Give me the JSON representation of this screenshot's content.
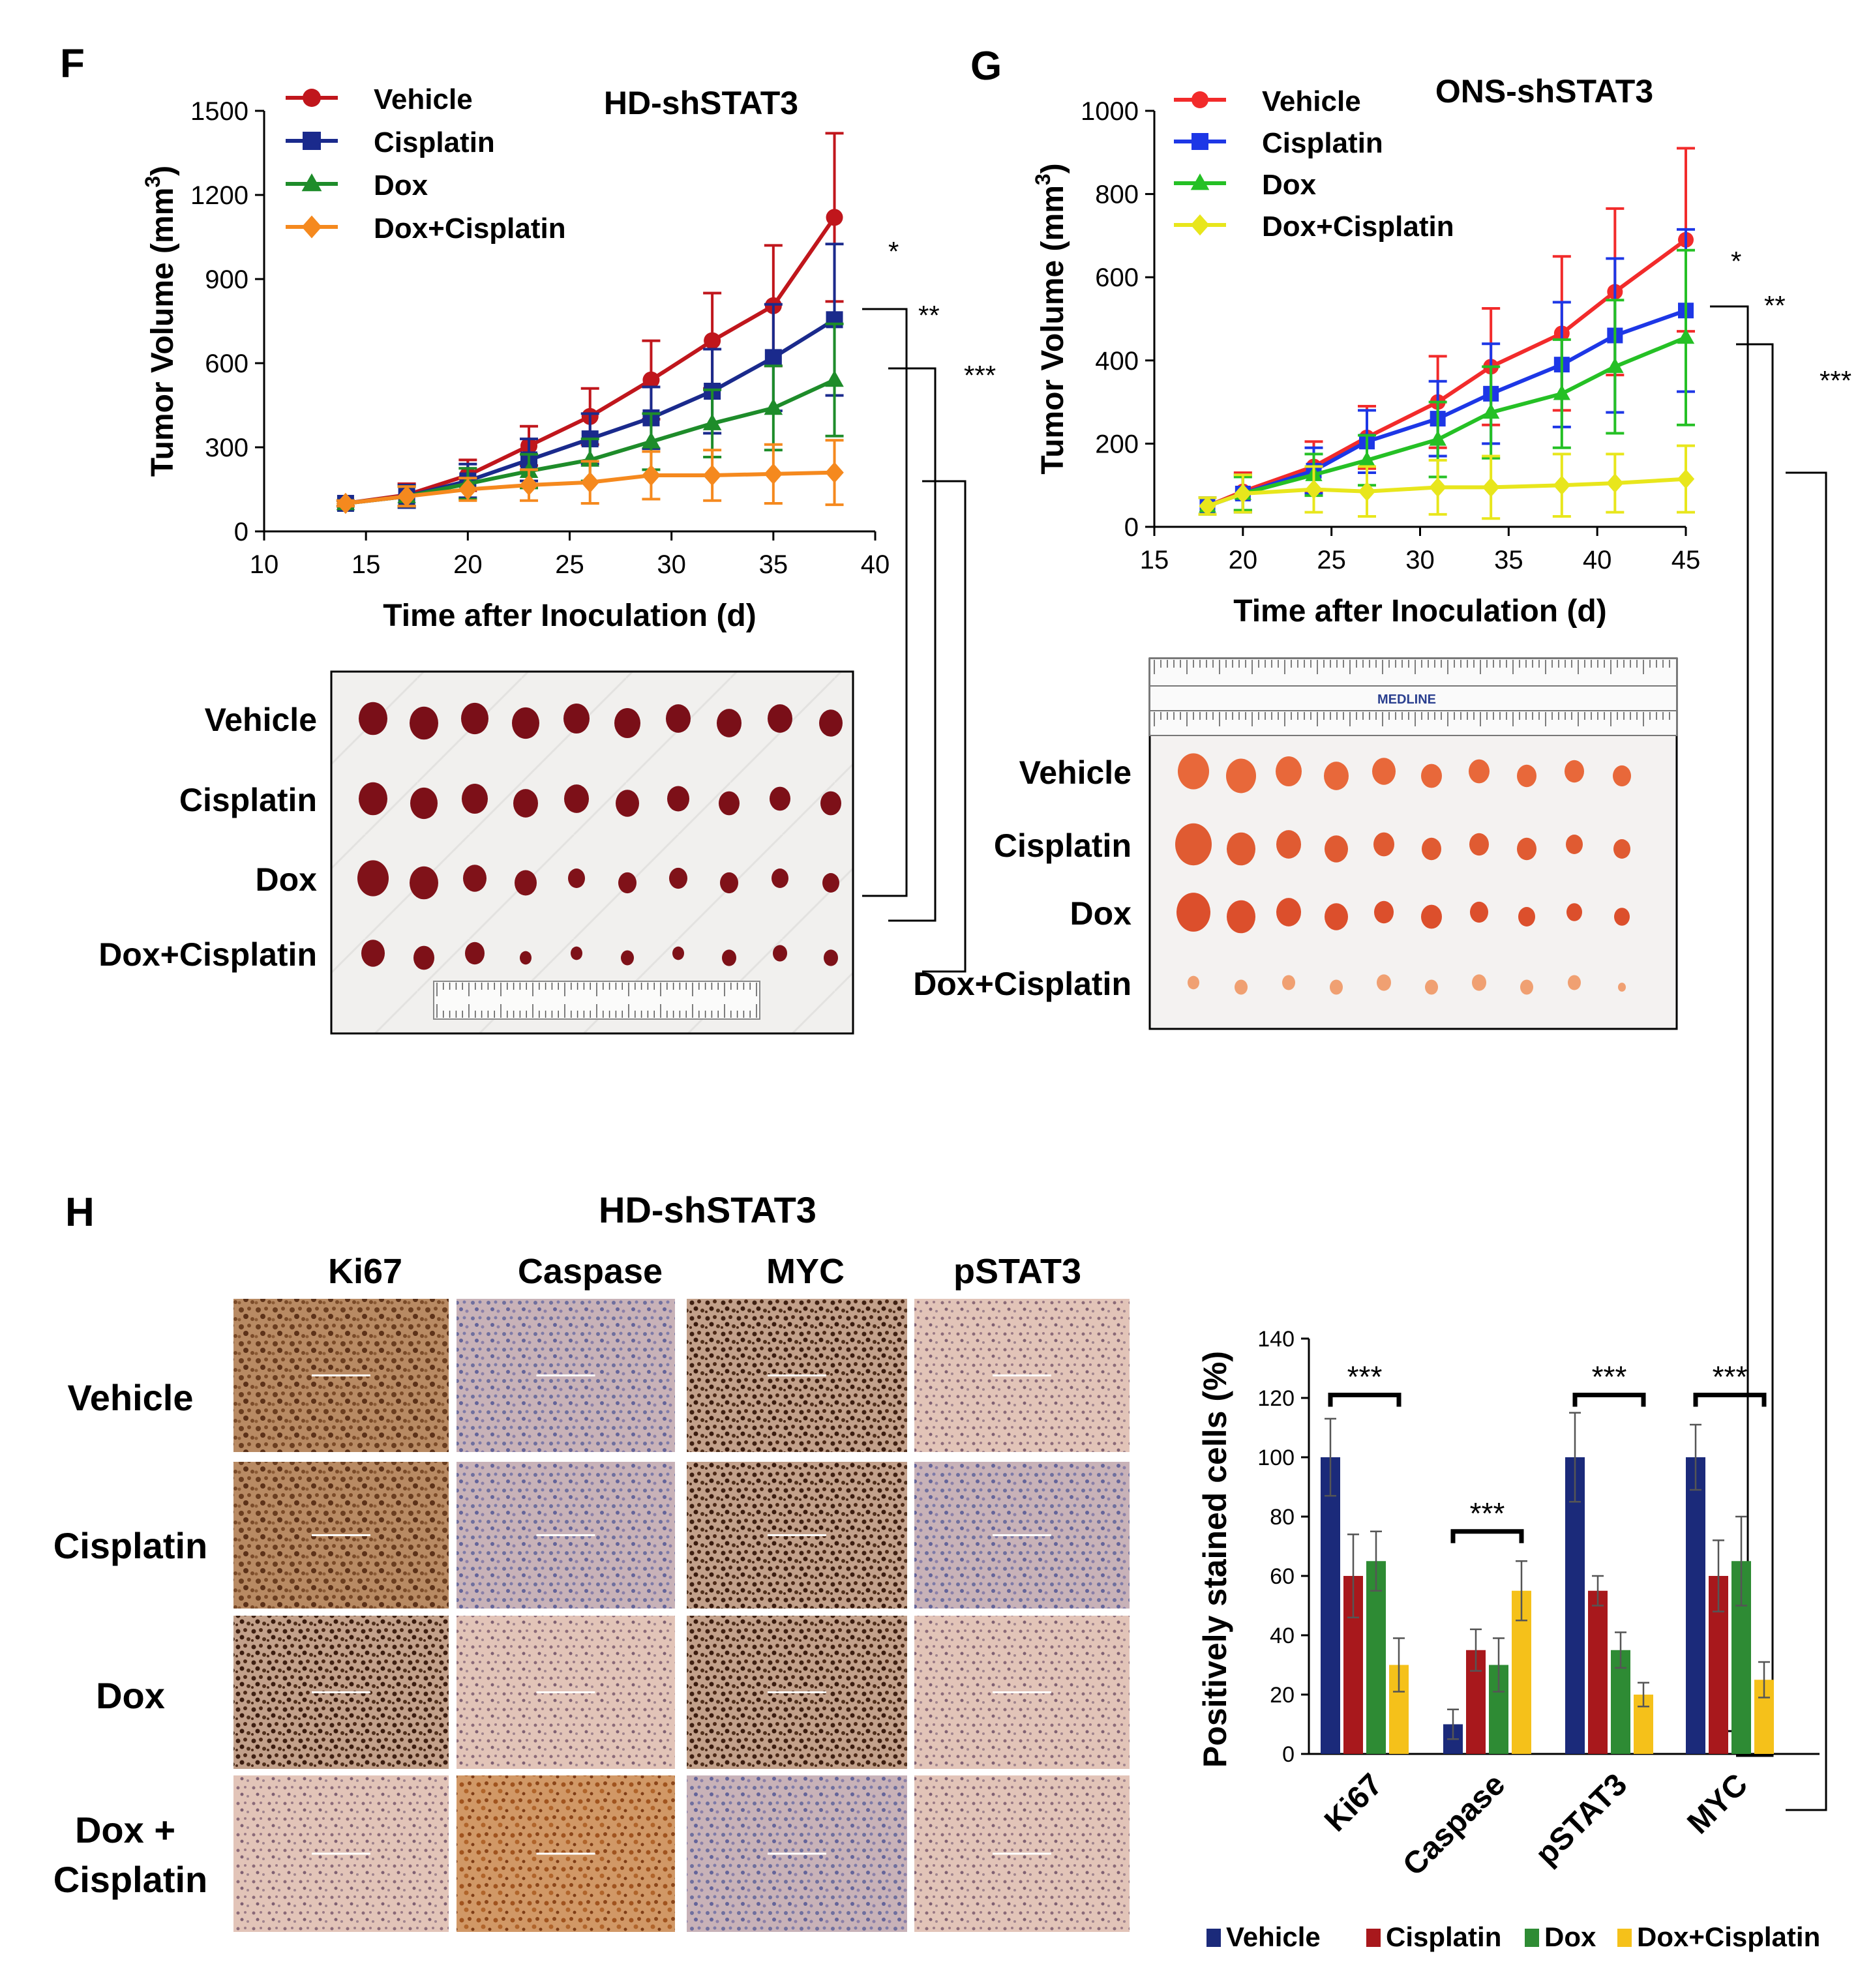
{
  "panels": {
    "F": {
      "letter": "F"
    },
    "G": {
      "letter": "G"
    },
    "H": {
      "letter": "H",
      "title": "HD-shSTAT3",
      "columns": [
        "Ki67",
        "Caspase",
        "MYC",
        "pSTAT3"
      ],
      "rows": [
        "Vehicle",
        "Cisplatin",
        "Dox",
        "Dox +",
        "Cisplatin"
      ]
    }
  },
  "photos": {
    "F": {
      "labels": [
        "Vehicle",
        "Cisplatin",
        "Dox",
        "Dox+Cisplatin"
      ],
      "counts": [
        10,
        10,
        10,
        10
      ]
    },
    "G": {
      "labels": [
        "Vehicle",
        "Cisplatin",
        "Dox",
        "Dox+Cisplatin"
      ],
      "counts": [
        10,
        10,
        10,
        10
      ],
      "ruler_brand": "MEDLINE"
    }
  },
  "colors": {
    "F": [
      "#C0161C",
      "#1A2A8C",
      "#1E8C2A",
      "#F5891E"
    ],
    "G": [
      "#F22B2B",
      "#1D37E6",
      "#25C025",
      "#E8E61C"
    ],
    "H": [
      "#1B2A7A",
      "#A8181C",
      "#2E8B34",
      "#F5C11A"
    ]
  },
  "chart_data": [
    {
      "id": "F",
      "type": "line",
      "title": "HD-shSTAT3",
      "xlabel": "Time after Inoculation (d)",
      "ylabel": "Tumor Volume (mm",
      "ylabel_sup": "3",
      "ylabel_end": ")",
      "xlim": [
        10,
        40
      ],
      "ylim": [
        0,
        1500
      ],
      "xticks": [
        "10",
        "15",
        "20",
        "25",
        "30",
        "35",
        "40"
      ],
      "yticks": [
        "0",
        "300",
        "600",
        "900",
        "1200",
        "1500"
      ],
      "x": [
        14,
        17,
        20,
        23,
        26,
        29,
        32,
        35,
        38
      ],
      "series": [
        {
          "name": "Vehicle",
          "marker": "circle",
          "values": [
            100,
            130,
            200,
            305,
            410,
            540,
            680,
            805,
            1120
          ],
          "errors": [
            10,
            40,
            55,
            70,
            100,
            140,
            170,
            215,
            300
          ]
        },
        {
          "name": "Cisplatin",
          "marker": "square",
          "values": [
            100,
            125,
            180,
            255,
            330,
            405,
            500,
            620,
            755
          ],
          "errors": [
            10,
            40,
            60,
            75,
            90,
            110,
            150,
            190,
            270
          ]
        },
        {
          "name": "Dox",
          "marker": "triangle",
          "values": [
            100,
            125,
            170,
            215,
            255,
            320,
            385,
            440,
            540
          ],
          "errors": [
            10,
            35,
            55,
            60,
            75,
            100,
            120,
            150,
            200
          ]
        },
        {
          "name": "Dox+Cisplatin",
          "marker": "diamond",
          "values": [
            100,
            125,
            150,
            165,
            175,
            200,
            200,
            205,
            210
          ],
          "errors": [
            10,
            35,
            40,
            55,
            75,
            85,
            90,
            105,
            115
          ]
        }
      ],
      "significance": [
        "*",
        "**",
        "***"
      ]
    },
    {
      "id": "G",
      "type": "line",
      "title": "ONS-shSTAT3",
      "xlabel": "Time after Inoculation (d)",
      "ylabel": "Tumor Volume (mm",
      "ylabel_sup": "3",
      "ylabel_end": ")",
      "xlim": [
        15,
        45
      ],
      "ylim": [
        0,
        1000
      ],
      "xticks": [
        "15",
        "20",
        "25",
        "30",
        "35",
        "40",
        "45"
      ],
      "yticks": [
        "0",
        "200",
        "400",
        "600",
        "800",
        "1000"
      ],
      "x": [
        18,
        20,
        24,
        27,
        31,
        34,
        38,
        41,
        45
      ],
      "series": [
        {
          "name": "Vehicle",
          "marker": "circle",
          "values": [
            50,
            85,
            145,
            215,
            300,
            385,
            465,
            565,
            690
          ],
          "errors": [
            20,
            45,
            60,
            75,
            110,
            140,
            185,
            200,
            220
          ]
        },
        {
          "name": "Cisplatin",
          "marker": "square",
          "values": [
            50,
            80,
            135,
            205,
            260,
            320,
            390,
            460,
            520
          ],
          "errors": [
            20,
            45,
            55,
            75,
            90,
            120,
            150,
            185,
            195
          ]
        },
        {
          "name": "Dox",
          "marker": "triangle",
          "values": [
            50,
            80,
            125,
            160,
            210,
            275,
            320,
            385,
            455
          ],
          "errors": [
            20,
            40,
            50,
            60,
            90,
            110,
            130,
            160,
            210
          ]
        },
        {
          "name": "Dox+Cisplatin",
          "marker": "diamond",
          "values": [
            50,
            80,
            90,
            85,
            95,
            95,
            100,
            105,
            115
          ],
          "errors": [
            20,
            45,
            55,
            60,
            65,
            75,
            75,
            70,
            80
          ]
        }
      ],
      "significance": [
        "*",
        "**",
        "***"
      ]
    },
    {
      "id": "H",
      "type": "bar",
      "ylabel": "Positively stained cells (%)",
      "ylim": [
        0,
        140
      ],
      "yticks": [
        "0",
        "20",
        "40",
        "60",
        "80",
        "100",
        "120",
        "140"
      ],
      "categories": [
        "Ki67",
        "Caspase",
        "pSTAT3",
        "MYC"
      ],
      "series": [
        {
          "name": "Vehicle",
          "values": [
            100,
            10,
            100,
            100
          ],
          "errors": [
            13,
            5,
            15,
            11
          ]
        },
        {
          "name": "Cisplatin",
          "values": [
            60,
            35,
            55,
            60
          ],
          "errors": [
            14,
            7,
            5,
            12
          ]
        },
        {
          "name": "Dox",
          "values": [
            65,
            30,
            35,
            65
          ],
          "errors": [
            10,
            9,
            6,
            15
          ]
        },
        {
          "name": "Dox+Cisplatin",
          "values": [
            30,
            55,
            20,
            25
          ],
          "errors": [
            9,
            10,
            4,
            6
          ]
        }
      ],
      "significance": [
        {
          "category": "Ki67",
          "label": "***",
          "y": 121
        },
        {
          "category": "Caspase",
          "label": "***",
          "y": 75
        },
        {
          "category": "pSTAT3",
          "label": "***",
          "y": 121
        },
        {
          "category": "MYC",
          "label": "***",
          "y": 121
        }
      ]
    }
  ]
}
